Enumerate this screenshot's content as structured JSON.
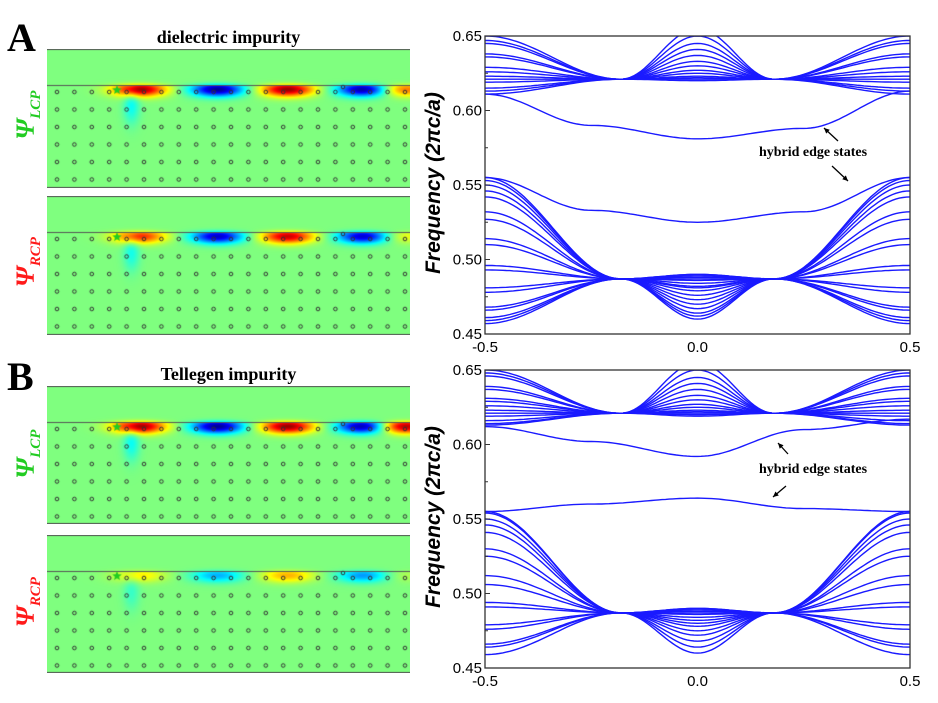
{
  "figure": {
    "panels": [
      {
        "letter": "A",
        "title": "dielectric impurity",
        "field_maps": [
          {
            "label_main": "Ψ",
            "label_sub": "LCP",
            "label_color": "#22cc22",
            "mode_phases": [
              1,
              -1,
              1,
              -1,
              0.6
            ],
            "strength": 1.0
          },
          {
            "label_main": "Ψ",
            "label_sub": "RCP",
            "label_color": "#ff1a1a",
            "mode_phases": [
              0.8,
              -1,
              1,
              -1,
              0.3
            ],
            "strength": 0.9
          }
        ]
      },
      {
        "letter": "B",
        "title": "Tellegen impurity",
        "field_maps": [
          {
            "label_main": "Ψ",
            "label_sub": "LCP",
            "label_color": "#22cc22",
            "mode_phases": [
              1,
              -1,
              1,
              -1,
              1
            ],
            "strength": 1.0
          },
          {
            "label_main": "Ψ",
            "label_sub": "RCP",
            "label_color": "#ff1a1a",
            "mode_phases": [
              0.5,
              -0.7,
              0.7,
              -0.8,
              0.2
            ],
            "strength": 0.6
          }
        ]
      }
    ],
    "colors": {
      "band_line": "#1a1aff",
      "field_background": "#80ff80",
      "impurity_star": "#22cc22"
    }
  },
  "chart_data": [
    {
      "type": "line",
      "title": "",
      "xlabel": "",
      "ylabel": "Frequency (2πc/a)",
      "xlim": [
        -0.5,
        0.5
      ],
      "ylim": [
        0.45,
        0.65
      ],
      "xticks": [
        "-0.5",
        "0.0",
        "0.5"
      ],
      "yticks": [
        "0.45",
        "0.50",
        "0.55",
        "0.60",
        "0.65"
      ],
      "annotation": "hybrid edge states",
      "upper_bulk": {
        "edge_values": [
          0.65,
          0.647,
          0.645,
          0.638,
          0.636,
          0.629,
          0.626,
          0.623,
          0.621,
          0.619,
          0.615,
          0.613,
          0.611
        ],
        "center_values": [
          0.655,
          0.65,
          0.645,
          0.641,
          0.637,
          0.633,
          0.63,
          0.627,
          0.625,
          0.623,
          0.622,
          0.621,
          0.62
        ],
        "node_x": 0.18,
        "node_y": 0.621
      },
      "lower_bulk": {
        "edge_values": [
          0.555,
          0.553,
          0.55,
          0.546,
          0.542,
          0.532,
          0.527,
          0.514,
          0.51,
          0.496,
          0.493,
          0.481,
          0.478,
          0.468,
          0.466,
          0.461,
          0.459,
          0.457
        ],
        "center_values": [
          0.49,
          0.49,
          0.489,
          0.489,
          0.488,
          0.487,
          0.486,
          0.484,
          0.482,
          0.481,
          0.479,
          0.476,
          0.473,
          0.47,
          0.467,
          0.464,
          0.462,
          0.46
        ],
        "node_x": 0.18,
        "node_y": 0.487
      },
      "edge_states": [
        {
          "name": "upper hybrid edge state",
          "x": [
            -0.5,
            -0.25,
            0.0,
            0.25,
            0.5
          ],
          "y": [
            0.611,
            0.59,
            0.581,
            0.588,
            0.613
          ]
        },
        {
          "name": "lower hybrid edge state",
          "x": [
            -0.5,
            -0.25,
            0.0,
            0.25,
            0.5
          ],
          "y": [
            0.555,
            0.533,
            0.525,
            0.532,
            0.555
          ]
        }
      ]
    },
    {
      "type": "line",
      "title": "",
      "xlabel": "",
      "ylabel": "Frequency (2πc/a)",
      "xlim": [
        -0.5,
        0.5
      ],
      "ylim": [
        0.45,
        0.65
      ],
      "xticks": [
        "-0.5",
        "0.0",
        "0.5"
      ],
      "yticks": [
        "0.45",
        "0.50",
        "0.55",
        "0.60",
        "0.65"
      ],
      "annotation": "hybrid edge states",
      "upper_bulk": {
        "edge_values": [
          0.65,
          0.648,
          0.646,
          0.639,
          0.637,
          0.631,
          0.629,
          0.626,
          0.623,
          0.621,
          0.619,
          0.616,
          0.614,
          0.613
        ],
        "center_values": [
          0.655,
          0.65,
          0.645,
          0.641,
          0.637,
          0.633,
          0.63,
          0.627,
          0.625,
          0.623,
          0.622,
          0.621,
          0.62,
          0.619
        ],
        "node_x": 0.18,
        "node_y": 0.621
      },
      "lower_bulk": {
        "edge_values": [
          0.555,
          0.554,
          0.55,
          0.546,
          0.541,
          0.53,
          0.525,
          0.512,
          0.506,
          0.494,
          0.491,
          0.479,
          0.476,
          0.466,
          0.464,
          0.459
        ],
        "center_values": [
          0.49,
          0.49,
          0.489,
          0.489,
          0.488,
          0.487,
          0.486,
          0.484,
          0.482,
          0.48,
          0.478,
          0.475,
          0.472,
          0.468,
          0.464,
          0.46
        ],
        "node_x": 0.18,
        "node_y": 0.487
      },
      "edge_states": [
        {
          "name": "upper hybrid edge state",
          "x": [
            -0.5,
            -0.25,
            0.0,
            0.25,
            0.5
          ],
          "y": [
            0.612,
            0.602,
            0.592,
            0.61,
            0.617
          ]
        },
        {
          "name": "lower hybrid edge state",
          "x": [
            -0.5,
            -0.25,
            0.0,
            0.25,
            0.5
          ],
          "y": [
            0.555,
            0.56,
            0.564,
            0.557,
            0.555
          ]
        }
      ]
    }
  ]
}
